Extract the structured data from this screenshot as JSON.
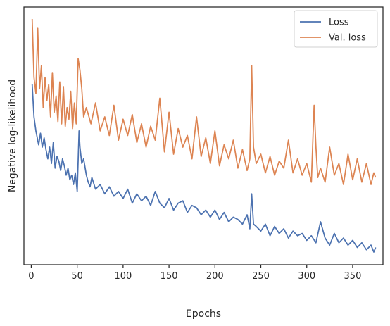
{
  "chart_data": {
    "type": "line",
    "xlabel": "Epochs",
    "ylabel": "Negative log-likelihood",
    "xlim": [
      -8,
      383
    ],
    "ylim": [
      0,
      100
    ],
    "x_ticks": [
      0,
      50,
      100,
      150,
      200,
      250,
      300,
      350
    ],
    "y_ticks_labeled": false,
    "grid": false,
    "legend_position": "top-right",
    "series": [
      {
        "name": "Loss",
        "color": "#4c72b0",
        "x": [
          1,
          3,
          5,
          8,
          10,
          12,
          14,
          16,
          18,
          20,
          22,
          24,
          26,
          28,
          30,
          32,
          34,
          36,
          38,
          40,
          42,
          44,
          46,
          48,
          50,
          52,
          53,
          55,
          57,
          60,
          62,
          64,
          66,
          70,
          75,
          80,
          85,
          90,
          95,
          100,
          105,
          110,
          115,
          120,
          125,
          130,
          135,
          140,
          145,
          150,
          155,
          160,
          165,
          170,
          175,
          180,
          185,
          190,
          195,
          200,
          205,
          210,
          215,
          220,
          225,
          230,
          235,
          238,
          240,
          242,
          245,
          250,
          255,
          260,
          265,
          270,
          275,
          280,
          285,
          290,
          295,
          300,
          305,
          310,
          315,
          320,
          325,
          330,
          335,
          340,
          345,
          350,
          355,
          360,
          365,
          370,
          373,
          375
        ],
        "y": [
          72,
          58,
          52,
          46,
          51,
          45,
          49,
          44,
          40,
          45,
          38,
          47,
          36,
          41,
          39,
          35,
          40,
          37,
          33,
          36,
          31,
          33,
          29,
          34,
          26,
          52,
          45,
          38,
          40,
          33,
          30,
          28,
          32,
          27,
          29,
          25,
          28,
          24,
          26,
          23,
          27,
          21,
          25,
          22,
          24,
          20,
          26,
          21,
          19,
          23,
          18,
          21,
          22,
          17,
          20,
          19,
          16,
          18,
          15,
          18,
          14,
          17,
          13,
          15,
          14,
          12,
          16,
          10,
          25,
          12,
          11,
          9,
          12,
          7,
          11,
          8,
          10,
          6,
          9,
          7,
          8,
          5,
          7,
          4,
          13,
          6,
          3,
          8,
          4,
          6,
          3,
          5,
          2,
          4,
          1,
          3,
          0,
          2
        ]
      },
      {
        "name": "Val. loss",
        "color": "#dd8452",
        "x": [
          1,
          3,
          5,
          7,
          9,
          11,
          13,
          15,
          17,
          19,
          21,
          23,
          25,
          27,
          29,
          31,
          33,
          35,
          37,
          39,
          41,
          43,
          45,
          47,
          49,
          51,
          53,
          55,
          57,
          60,
          65,
          70,
          75,
          80,
          85,
          90,
          95,
          100,
          105,
          110,
          115,
          120,
          125,
          130,
          135,
          140,
          145,
          150,
          155,
          160,
          165,
          170,
          175,
          180,
          185,
          190,
          195,
          200,
          205,
          210,
          215,
          220,
          225,
          230,
          235,
          238,
          240,
          242,
          245,
          250,
          255,
          260,
          265,
          270,
          275,
          280,
          285,
          290,
          295,
          300,
          305,
          308,
          310,
          312,
          315,
          320,
          325,
          330,
          335,
          340,
          345,
          350,
          355,
          360,
          365,
          370,
          373,
          375
        ],
        "y": [
          100,
          75,
          68,
          96,
          70,
          80,
          62,
          75,
          65,
          72,
          58,
          77,
          60,
          67,
          56,
          73,
          55,
          71,
          54,
          62,
          57,
          69,
          53,
          64,
          55,
          83,
          78,
          70,
          58,
          62,
          55,
          64,
          52,
          58,
          50,
          63,
          48,
          57,
          50,
          59,
          47,
          55,
          45,
          54,
          48,
          66,
          43,
          60,
          42,
          53,
          45,
          50,
          40,
          58,
          41,
          49,
          38,
          52,
          37,
          46,
          40,
          48,
          36,
          44,
          35,
          40,
          80,
          45,
          38,
          42,
          34,
          41,
          33,
          39,
          36,
          48,
          34,
          40,
          33,
          38,
          30,
          63,
          45,
          32,
          36,
          30,
          45,
          33,
          38,
          29,
          42,
          31,
          40,
          30,
          38,
          29,
          34,
          32
        ]
      }
    ]
  }
}
